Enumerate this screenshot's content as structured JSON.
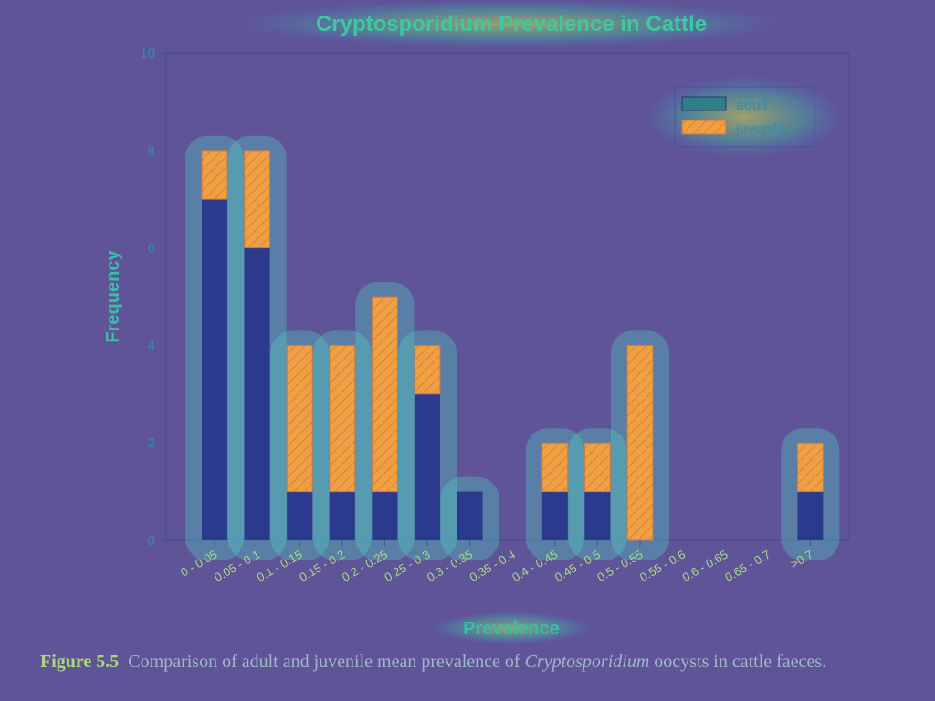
{
  "chart_data": {
    "type": "bar",
    "stacked": true,
    "title": "Cryptosporidium Prevalence in Cattle",
    "xlabel": "Prevalence",
    "ylabel": "Frequency",
    "ylim": [
      0,
      10
    ],
    "yticks": [
      "0",
      "2",
      "4",
      "6",
      "8",
      "10"
    ],
    "categories": [
      "0 - 0.05",
      "0.05 - 0.1",
      "0.1 - 0.15",
      "0.15 - 0.2",
      "0.2 - 0.25",
      "0.25 - 0.3",
      "0.3 - 0.35",
      "0.35 - 0.4",
      "0.4 - 0.45",
      "0.45 - 0.5",
      "0.5 - 0.55",
      "0.55 - 0.6",
      "0.6 - 0.65",
      "0.65 - 0.7",
      ">0.7"
    ],
    "series": [
      {
        "name": "adult",
        "values": [
          7,
          6,
          1,
          1,
          1,
          3,
          1,
          0,
          1,
          1,
          0,
          0,
          0,
          0,
          1
        ],
        "color": "#2b3a8c"
      },
      {
        "name": "juvenile",
        "values": [
          1,
          2,
          3,
          3,
          4,
          1,
          0,
          0,
          1,
          1,
          4,
          0,
          0,
          0,
          1
        ],
        "color": "#f0a040"
      }
    ],
    "legend_position": "top-right",
    "grid": false
  },
  "caption": {
    "figure_label": "Figure 5.5",
    "text_before": "Comparison of adult and juvenile mean prevalence of",
    "italic_term": "Cryptosporidium",
    "text_after": "oocysts in cattle faeces."
  }
}
